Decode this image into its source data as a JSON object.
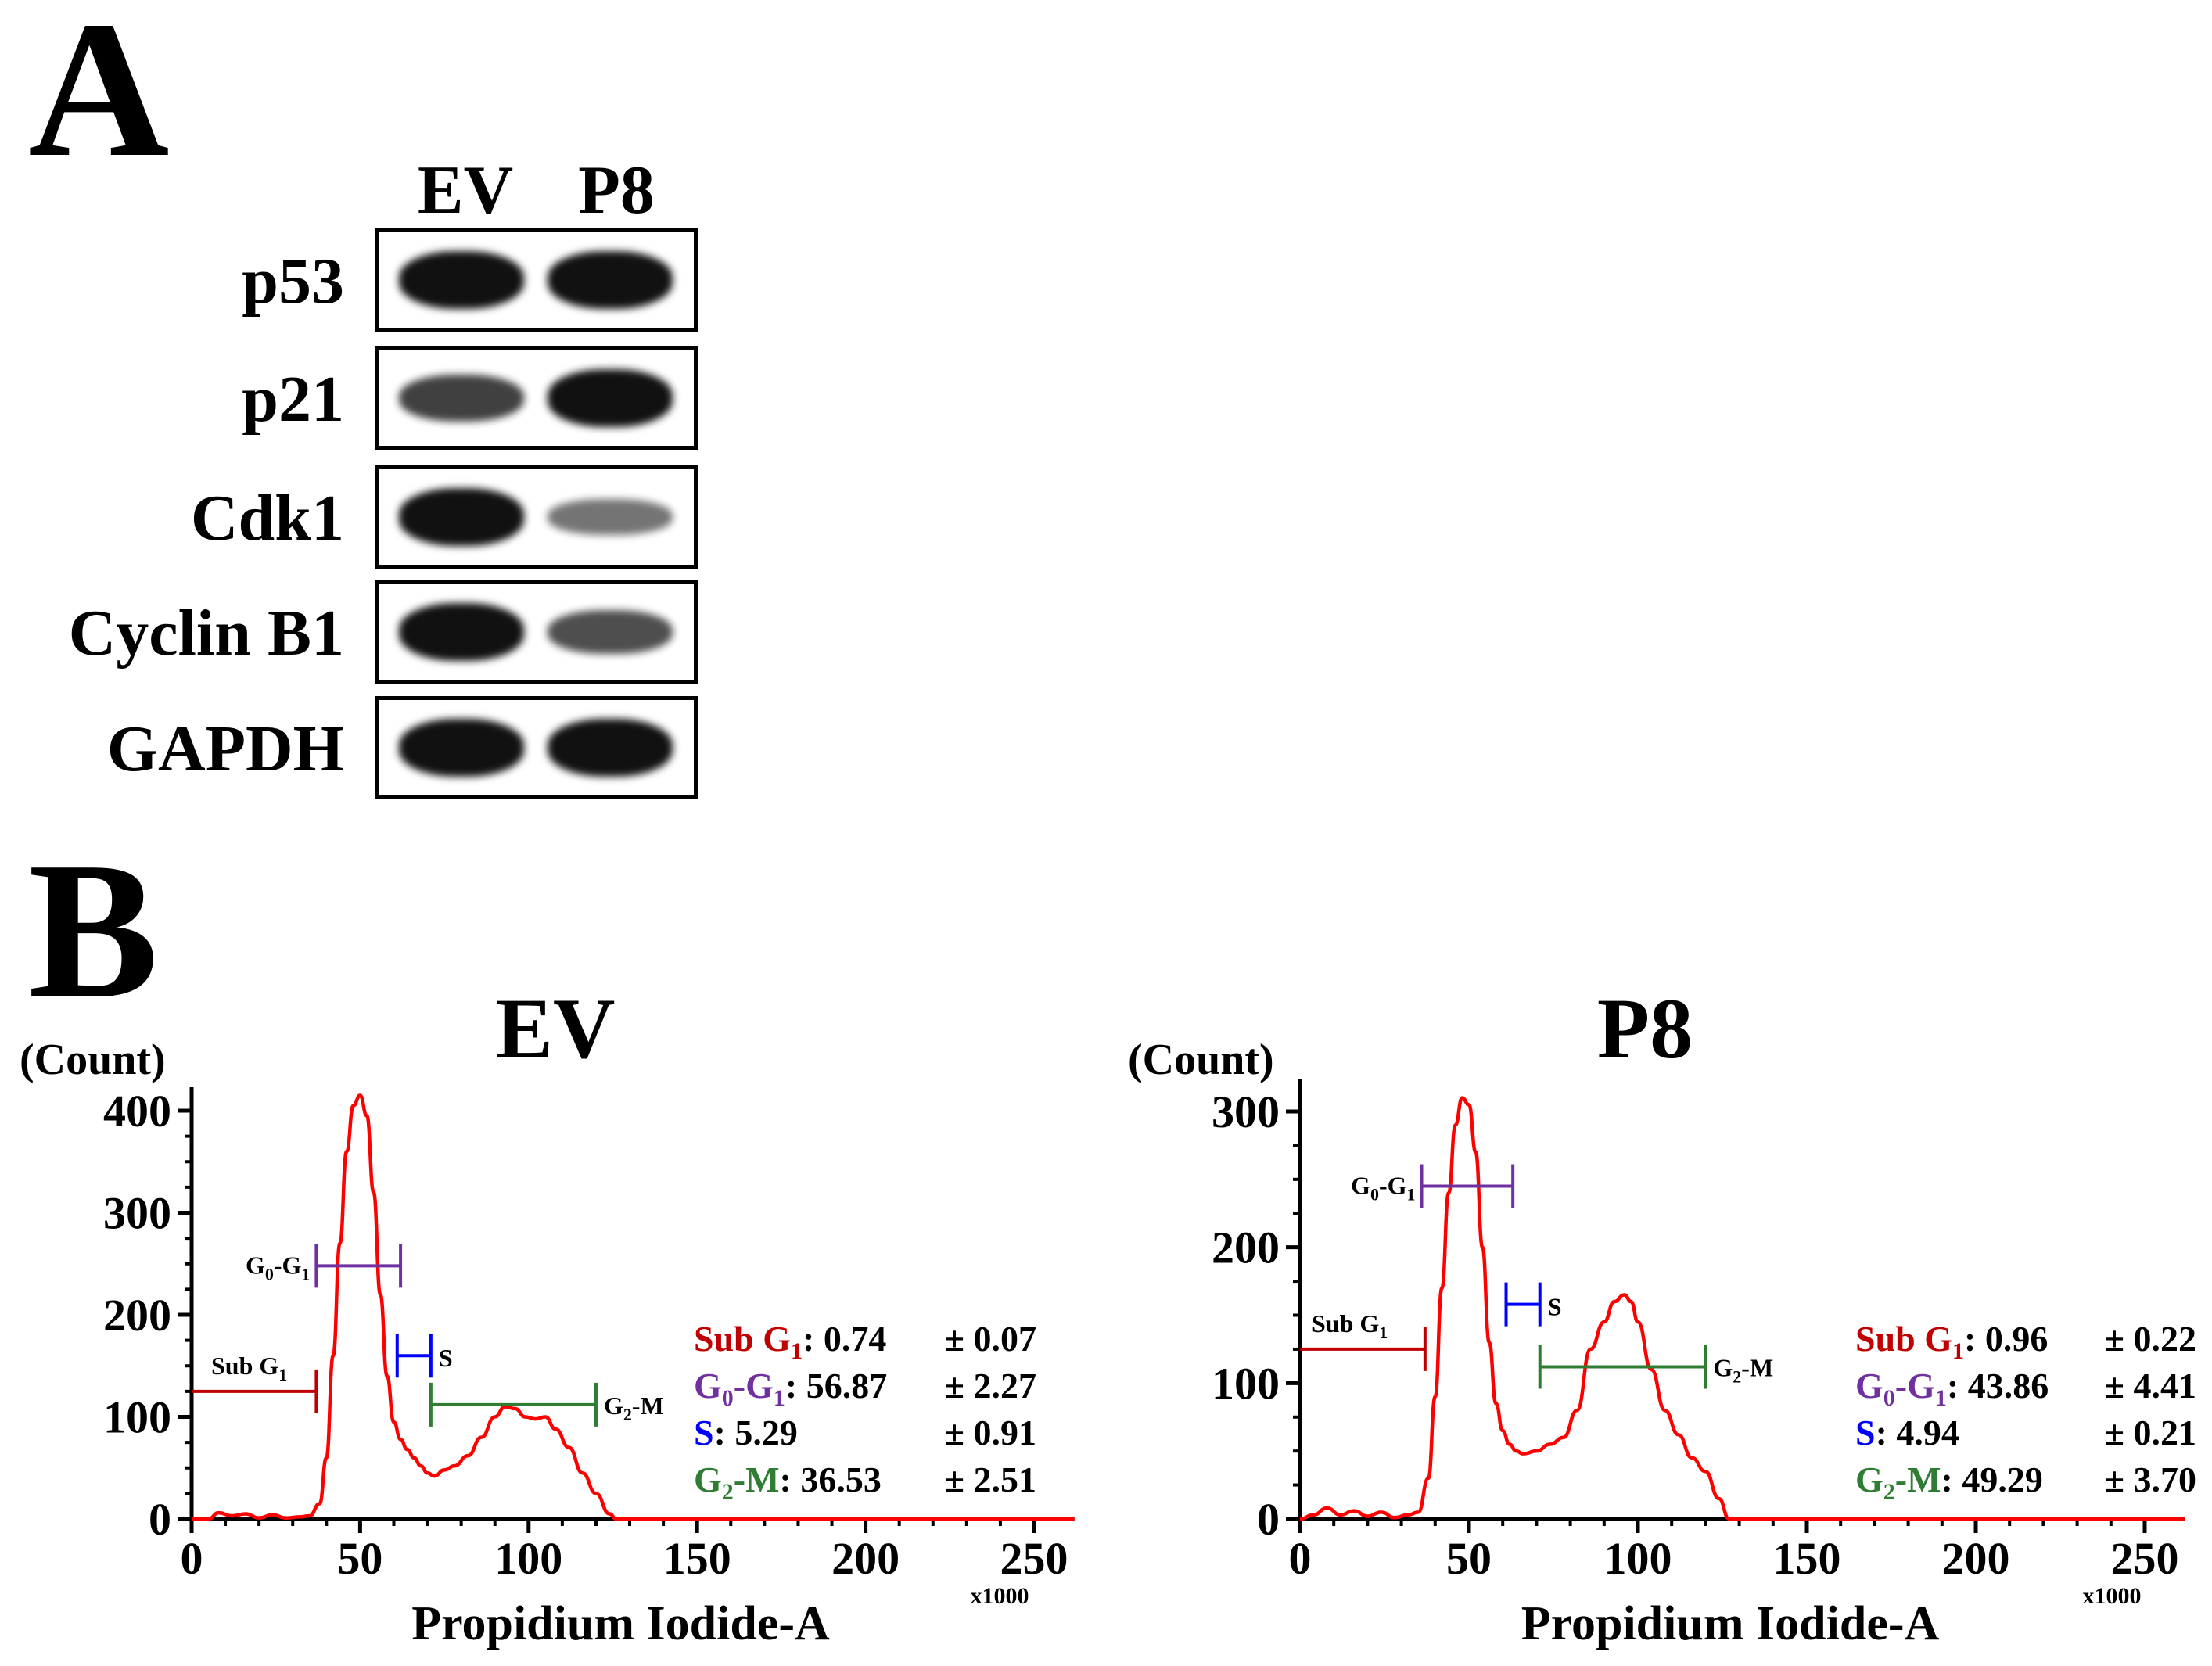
{
  "panel_a": {
    "letter": "A",
    "lanes": [
      "EV",
      "P8"
    ],
    "proteins": [
      {
        "name": "p53",
        "ev_intensity": 1.0,
        "p8_intensity": 1.0
      },
      {
        "name": "p21",
        "ev_intensity": 0.7,
        "p8_intensity": 1.0
      },
      {
        "name": "Cdk1",
        "ev_intensity": 1.0,
        "p8_intensity": 0.35
      },
      {
        "name": "Cyclin B1",
        "ev_intensity": 1.0,
        "p8_intensity": 0.6
      },
      {
        "name": "GAPDH",
        "ev_intensity": 1.0,
        "p8_intensity": 1.0
      }
    ]
  },
  "panel_b": {
    "letter": "B"
  },
  "chart_data": [
    {
      "type": "line",
      "title": "EV",
      "xlabel": "Propidium Iodide-A",
      "ylabel": "(Count)",
      "x_unit": "x1000",
      "xlim": [
        0,
        262
      ],
      "ylim": [
        0,
        420
      ],
      "xticks": [
        "0",
        "50",
        "100",
        "150",
        "200",
        "250"
      ],
      "yticks": [
        "0",
        "100",
        "200",
        "300",
        "400"
      ],
      "series": [
        {
          "name": "EV histogram",
          "color": "#ff0000",
          "x": [
            0,
            5,
            8,
            12,
            16,
            20,
            24,
            28,
            32,
            35,
            38,
            40,
            42,
            44,
            46,
            48,
            50,
            52,
            54,
            56,
            58,
            60,
            62,
            64,
            66,
            68,
            70,
            72,
            75,
            78,
            82,
            86,
            90,
            93,
            96,
            99,
            102,
            105,
            108,
            112,
            116,
            120,
            124,
            126,
            140,
            262
          ],
          "y": [
            0,
            0,
            6,
            3,
            5,
            1,
            4,
            1,
            2,
            3,
            15,
            60,
            160,
            270,
            360,
            405,
            415,
            395,
            320,
            220,
            140,
            95,
            78,
            68,
            60,
            52,
            45,
            42,
            48,
            52,
            62,
            80,
            100,
            110,
            108,
            100,
            98,
            100,
            88,
            70,
            45,
            25,
            5,
            0,
            0,
            0
          ]
        }
      ],
      "gates": [
        {
          "label": "Sub G1",
          "x_start": 0,
          "x_end": 37,
          "y": 125,
          "color": "#c00000"
        },
        {
          "label": "G0-G1",
          "x_start": 37,
          "x_end": 62,
          "y": 248,
          "color": "#7030a0"
        },
        {
          "label": "S",
          "x_start": 61,
          "x_end": 71,
          "y": 160,
          "color": "#0000ff"
        },
        {
          "label": "G2-M",
          "x_start": 71,
          "x_end": 120,
          "y": 112,
          "color": "#2e7d32"
        }
      ],
      "stats": [
        {
          "phase": "Sub G",
          "sub": "1",
          "value": ": 0.74",
          "sd": "± 0.07",
          "color": "#c00000"
        },
        {
          "phase": "G",
          "sub": "0",
          "phase2": "-G",
          "sub2": "1",
          "value": ": 56.87",
          "sd": "± 2.27",
          "color": "#7030a0"
        },
        {
          "phase": "S",
          "sub": "",
          "value": ": 5.29",
          "sd": "± 0.91",
          "color": "#0000ff"
        },
        {
          "phase": "G",
          "sub": "2",
          "phase2": "-M",
          "sub2": "",
          "value": ": 36.53",
          "sd": "± 2.51",
          "color": "#2e7d32"
        }
      ]
    },
    {
      "type": "line",
      "title": "P8",
      "xlabel": "Propidium Iodide-A",
      "ylabel": "(Count)",
      "x_unit": "x1000",
      "xlim": [
        0,
        262
      ],
      "ylim": [
        0,
        320
      ],
      "xticks": [
        "0",
        "50",
        "100",
        "150",
        "200",
        "250"
      ],
      "yticks": [
        "0",
        "100",
        "200",
        "300"
      ],
      "series": [
        {
          "name": "P8 histogram",
          "color": "#ff0000",
          "x": [
            0,
            4,
            8,
            12,
            16,
            20,
            24,
            28,
            32,
            35,
            38,
            40,
            42,
            44,
            46,
            48,
            50,
            52,
            54,
            56,
            58,
            60,
            62,
            64,
            66,
            70,
            74,
            78,
            82,
            86,
            90,
            93,
            96,
            98,
            100,
            104,
            108,
            112,
            116,
            120,
            124,
            127,
            140,
            262
          ],
          "y": [
            0,
            3,
            8,
            3,
            6,
            2,
            5,
            1,
            3,
            5,
            30,
            90,
            170,
            240,
            290,
            310,
            305,
            270,
            200,
            130,
            85,
            65,
            55,
            50,
            48,
            50,
            55,
            60,
            80,
            125,
            145,
            160,
            165,
            160,
            145,
            110,
            80,
            62,
            45,
            35,
            15,
            0,
            0,
            0
          ]
        }
      ],
      "gates": [
        {
          "label": "Sub G1",
          "x_start": 0,
          "x_end": 37,
          "y": 125,
          "color": "#c00000"
        },
        {
          "label": "G0-G1",
          "x_start": 36,
          "x_end": 63,
          "y": 245,
          "color": "#7030a0"
        },
        {
          "label": "S",
          "x_start": 61,
          "x_end": 71,
          "y": 158,
          "color": "#0000ff"
        },
        {
          "label": "G2-M",
          "x_start": 71,
          "x_end": 120,
          "y": 112,
          "color": "#2e7d32"
        }
      ],
      "stats": [
        {
          "phase": "Sub G",
          "sub": "1",
          "value": ": 0.96",
          "sd": "± 0.22",
          "color": "#c00000"
        },
        {
          "phase": "G",
          "sub": "0",
          "phase2": "-G",
          "sub2": "1",
          "value": ": 43.86",
          "sd": "± 4.41",
          "color": "#7030a0"
        },
        {
          "phase": "S",
          "sub": "",
          "value": ": 4.94",
          "sd": "± 0.21",
          "color": "#0000ff"
        },
        {
          "phase": "G",
          "sub": "2",
          "phase2": "-M",
          "sub2": "",
          "value": ": 49.29",
          "sd": "± 3.70",
          "color": "#2e7d32"
        }
      ]
    }
  ]
}
